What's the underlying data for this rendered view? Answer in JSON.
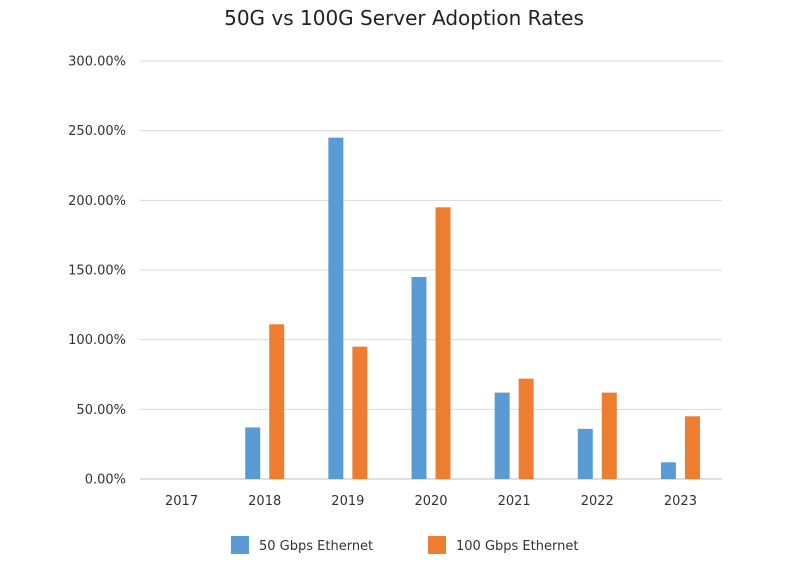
{
  "chart_data": {
    "type": "bar",
    "title": "50G vs 100G Server Adoption Rates",
    "xlabel": "",
    "ylabel": "",
    "categories": [
      "2017",
      "2018",
      "2019",
      "2020",
      "2021",
      "2022",
      "2023"
    ],
    "series": [
      {
        "name": "50 Gbps Ethernet",
        "color": "#5b9bd5",
        "values": [
          0,
          37,
          245,
          145,
          62,
          36,
          12
        ]
      },
      {
        "name": "100 Gbps Ethernet",
        "color": "#ed7d31",
        "values": [
          0,
          111,
          95,
          195,
          72,
          62,
          45
        ]
      }
    ],
    "ylim": [
      0,
      300
    ],
    "y_ticks": [
      0,
      50,
      100,
      150,
      200,
      250,
      300
    ],
    "y_tick_labels": [
      "0.00%",
      "50.00%",
      "100.00%",
      "150.00%",
      "200.00%",
      "250.00%",
      "300.00%"
    ],
    "grid": true,
    "legend_position": "bottom"
  }
}
